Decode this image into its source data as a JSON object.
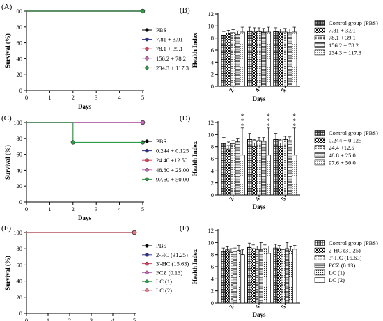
{
  "chart_data": [
    {
      "panel": "(A)",
      "type": "line",
      "xlabel": "Days",
      "ylabel": "Survival (%)",
      "xlim": [
        0,
        5
      ],
      "ylim": [
        0,
        100
      ],
      "xticks": [
        "0",
        "1",
        "2",
        "3",
        "4",
        "5"
      ],
      "yticks": [
        "0",
        "20",
        "40",
        "60",
        "80",
        "100"
      ],
      "legend": [
        "PBS",
        "7.81 + 3.91",
        "78.1 + 39.1",
        "156.2 + 78.2",
        "234.3 + 117.3"
      ],
      "legend_colors": [
        "#000000",
        "#2b2f8f",
        "#d9435a",
        "#c566b8",
        "#2e9b47"
      ],
      "series": [
        {
          "name": "PBS",
          "color": "#000000",
          "x": [
            0,
            5
          ],
          "y": [
            100,
            100
          ]
        },
        {
          "name": "7.81 + 3.91",
          "color": "#2b2f8f",
          "x": [
            0,
            5
          ],
          "y": [
            100,
            100
          ]
        },
        {
          "name": "78.1 + 39.1",
          "color": "#d9435a",
          "x": [
            0,
            5
          ],
          "y": [
            100,
            100
          ]
        },
        {
          "name": "156.2 + 78.2",
          "color": "#c566b8",
          "x": [
            0,
            5
          ],
          "y": [
            100,
            100
          ]
        },
        {
          "name": "234.3 + 117.3",
          "color": "#2e9b47",
          "x": [
            0,
            5
          ],
          "y": [
            100,
            100
          ]
        }
      ]
    },
    {
      "panel": "(B)",
      "type": "bar",
      "xlabel": "Days",
      "ylabel": "Health Index",
      "ylim": [
        0,
        12
      ],
      "yticks": [
        "0",
        "2",
        "4",
        "6",
        "8",
        "10",
        "12"
      ],
      "categories": [
        "2",
        "4",
        "5"
      ],
      "legend": [
        "Control group (PBS)",
        "7.81 + 3.91",
        "78.1 + 39.1",
        "156.2 + 78.2",
        "234.3 + 117.3"
      ],
      "series": [
        {
          "name": "Control group (PBS)",
          "pattern": "p-grid",
          "values": [
            8.5,
            9.2,
            9.1
          ],
          "errors": [
            0.6,
            0.6,
            0.6
          ]
        },
        {
          "name": "7.81 + 3.91",
          "pattern": "p-check",
          "values": [
            8.8,
            9.0,
            9.0
          ],
          "errors": [
            0.5,
            0.7,
            0.5
          ]
        },
        {
          "name": "78.1 + 39.1",
          "pattern": "p-hdash",
          "values": [
            8.9,
            9.1,
            9.0
          ],
          "errors": [
            0.5,
            0.6,
            0.6
          ]
        },
        {
          "name": "156.2 + 78.2",
          "pattern": "p-hline",
          "values": [
            8.6,
            9.0,
            8.9
          ],
          "errors": [
            0.6,
            0.6,
            0.6
          ]
        },
        {
          "name": "234.3 + 117.3",
          "pattern": "p-hdot",
          "values": [
            9.0,
            9.0,
            9.0
          ],
          "errors": [
            0.8,
            0.8,
            0.8
          ]
        }
      ]
    },
    {
      "panel": "(C)",
      "type": "line",
      "xlabel": "Days",
      "ylabel": "Survival (%)",
      "xlim": [
        0,
        5
      ],
      "ylim": [
        0,
        100
      ],
      "xticks": [
        "0",
        "1",
        "2",
        "3",
        "4",
        "5"
      ],
      "yticks": [
        "0",
        "20",
        "40",
        "60",
        "80",
        "100"
      ],
      "legend": [
        "PBS",
        "0.244 + 0.125",
        "24.40 +12.50",
        "48.80 + 25.00",
        "97.60 + 50.00"
      ],
      "legend_colors": [
        "#000000",
        "#2b2f8f",
        "#d9435a",
        "#c566b8",
        "#2e9b47"
      ],
      "series": [
        {
          "name": "PBS",
          "color": "#000000",
          "x": [
            0,
            5
          ],
          "y": [
            100,
            100
          ]
        },
        {
          "name": "0.244 + 0.125",
          "color": "#2b2f8f",
          "x": [
            0,
            5
          ],
          "y": [
            100,
            100
          ]
        },
        {
          "name": "24.40 +12.50",
          "color": "#d9435a",
          "x": [
            0,
            5
          ],
          "y": [
            100,
            100
          ]
        },
        {
          "name": "48.80 + 25.00",
          "color": "#c566b8",
          "x": [
            0,
            5
          ],
          "y": [
            100,
            100
          ]
        },
        {
          "name": "97.60 + 50.00",
          "color": "#2e9b47",
          "x": [
            0,
            2,
            2,
            5
          ],
          "y": [
            100,
            100,
            75,
            75
          ]
        }
      ]
    },
    {
      "panel": "(D)",
      "type": "bar",
      "xlabel": "Days",
      "ylabel": "Health Index",
      "ylim": [
        0,
        12
      ],
      "yticks": [
        "0",
        "2",
        "4",
        "6",
        "8",
        "10",
        "12"
      ],
      "categories": [
        "2",
        "4",
        "5"
      ],
      "legend": [
        "Control group (PBS)",
        "0.244 + 0.125",
        "24.4 +12.5",
        "48.8 + 25.0",
        "97.6 + 50.0"
      ],
      "series": [
        {
          "name": "Control group (PBS)",
          "pattern": "p-grid",
          "values": [
            8.5,
            9.2,
            9.2
          ],
          "errors": [
            1.0,
            1.0,
            1.0
          ],
          "stars": [
            0,
            0,
            0
          ]
        },
        {
          "name": "0.244 + 0.125",
          "pattern": "p-check",
          "values": [
            7.6,
            8.0,
            8.0
          ],
          "errors": [
            0.6,
            0.6,
            0.6
          ],
          "stars": [
            1,
            1,
            1
          ]
        },
        {
          "name": "24.4 +12.5",
          "pattern": "p-hdash",
          "values": [
            8.5,
            9.0,
            9.2
          ],
          "errors": [
            0.5,
            0.5,
            0.5
          ],
          "stars": [
            0,
            0,
            0
          ]
        },
        {
          "name": "48.8 + 25.0",
          "pattern": "p-hline",
          "values": [
            8.8,
            8.9,
            9.0
          ],
          "errors": [
            0.6,
            0.6,
            0.6
          ],
          "stars": [
            0,
            0,
            0
          ]
        },
        {
          "name": "97.6 + 50.0",
          "pattern": "p-hdot",
          "values": [
            6.6,
            6.6,
            6.6
          ],
          "errors": [
            4.5,
            4.5,
            4.5
          ],
          "stars": [
            3,
            3,
            3
          ]
        }
      ]
    },
    {
      "panel": "(E)",
      "type": "line",
      "xlabel": "Days",
      "ylabel": "Survival (%)",
      "xlim": [
        0,
        5
      ],
      "ylim": [
        0,
        100
      ],
      "xticks": [
        "0",
        "1",
        "2",
        "3",
        "4",
        "5"
      ],
      "yticks": [
        "0",
        "20",
        "40",
        "60",
        "80",
        "100"
      ],
      "legend": [
        "PBS",
        "2-HC (31.25)",
        "3'-HC (15.63)",
        "FCZ (0.13)",
        "LC (1)",
        "LC (2)"
      ],
      "legend_colors": [
        "#000000",
        "#2b2f8f",
        "#d9435a",
        "#c566b8",
        "#2e9b47",
        "#e87a86"
      ],
      "series": [
        {
          "name": "PBS",
          "color": "#000000",
          "x": [
            0,
            5
          ],
          "y": [
            100,
            100
          ]
        },
        {
          "name": "2-HC (31.25)",
          "color": "#2b2f8f",
          "x": [
            0,
            5
          ],
          "y": [
            100,
            100
          ]
        },
        {
          "name": "3'-HC (15.63)",
          "color": "#d9435a",
          "x": [
            0,
            5
          ],
          "y": [
            100,
            100
          ]
        },
        {
          "name": "FCZ (0.13)",
          "color": "#c566b8",
          "x": [
            0,
            5
          ],
          "y": [
            100,
            100
          ]
        },
        {
          "name": "LC (1)",
          "color": "#2e9b47",
          "x": [
            0,
            5
          ],
          "y": [
            100,
            100
          ]
        },
        {
          "name": "LC (2)",
          "color": "#e87a86",
          "x": [
            0,
            5
          ],
          "y": [
            100,
            100
          ]
        }
      ]
    },
    {
      "panel": "(F)",
      "type": "bar",
      "xlabel": "Days",
      "ylabel": "Health Index",
      "ylim": [
        0,
        12
      ],
      "yticks": [
        "0",
        "2",
        "4",
        "6",
        "8",
        "10",
        "12"
      ],
      "categories": [
        "2",
        "4",
        "5"
      ],
      "legend": [
        "Control group (PBS)",
        "2-HC (31.25)",
        "3'-HC (15.63)",
        "FCZ (0.13)",
        "LC (1)",
        "LC (2)"
      ],
      "series": [
        {
          "name": "Control group (PBS)",
          "pattern": "p-grid",
          "values": [
            8.5,
            9.2,
            9.1
          ],
          "errors": [
            0.6,
            0.7,
            0.6
          ]
        },
        {
          "name": "2-HC (31.25)",
          "pattern": "p-check",
          "values": [
            8.8,
            9.0,
            9.0
          ],
          "errors": [
            0.5,
            0.6,
            0.5
          ]
        },
        {
          "name": "3'-HC (15.63)",
          "pattern": "p-hdash",
          "values": [
            8.4,
            8.8,
            8.8
          ],
          "errors": [
            0.6,
            0.6,
            0.6
          ]
        },
        {
          "name": "FCZ (0.13)",
          "pattern": "p-hline",
          "values": [
            8.6,
            8.8,
            9.0
          ],
          "errors": [
            0.5,
            1.2,
            1.0
          ]
        },
        {
          "name": "LC (1)",
          "pattern": "p-dot",
          "values": [
            8.7,
            9.0,
            8.6
          ],
          "errors": [
            0.8,
            0.6,
            0.7
          ]
        },
        {
          "name": "LC (2)",
          "pattern": "p-plain",
          "values": [
            8.0,
            8.2,
            8.9
          ],
          "errors": [
            0.8,
            1.2,
            0.6
          ]
        }
      ]
    }
  ]
}
